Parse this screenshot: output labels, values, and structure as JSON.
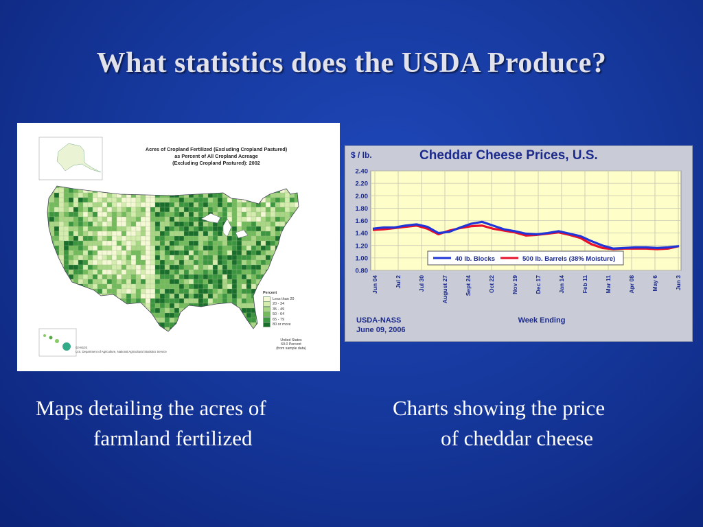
{
  "slide": {
    "title": "What statistics does the USDA Produce?"
  },
  "map": {
    "title": "Acres of Cropland Fertilized (Excluding Cropland Pastured)\nas Percent of All Cropland Acreage\n(Excluding Cropland Pastured):  2002",
    "legend": {
      "title": "Percent",
      "items": [
        {
          "label": "Less than 20",
          "color": "#f4f8d4"
        },
        {
          "label": "20 - 34",
          "color": "#d4ecae"
        },
        {
          "label": "35 - 49",
          "color": "#a8d684"
        },
        {
          "label": "50 - 64",
          "color": "#72ba5c"
        },
        {
          "label": "65 - 79",
          "color": "#3c9640"
        },
        {
          "label": "80 or more",
          "color": "#1a6e2c"
        }
      ]
    },
    "note": "United States\n60.0 Percent\n(from sample data)",
    "source": "02-M103\nU.S. Department of Agriculture, National Agricultural Statistics Service"
  },
  "chart_data": {
    "type": "line",
    "title": "Cheddar Cheese Prices, U.S.",
    "ylabel": "$ / lb.",
    "xlabel": "Week Ending",
    "ylim": [
      0.8,
      2.4
    ],
    "y_ticks": [
      "2.40",
      "2.20",
      "2.00",
      "1.80",
      "1.60",
      "1.40",
      "1.20",
      "1.00",
      "0.80"
    ],
    "x_ticks": [
      "Jun 04",
      "Jul 2",
      "Jul 30",
      "August 27",
      "Sept 24",
      "Oct 22",
      "Nov 19",
      "Dec 17",
      "Jan 14",
      "Feb 11",
      "Mar 11",
      "Apr 08",
      "May 6",
      "Jun 3"
    ],
    "grid": true,
    "legend_position": "bottom-center",
    "source": "USDA-NASS",
    "date": "June 09, 2006",
    "series": [
      {
        "name": "40 lb. Blocks",
        "color": "#1f35d8",
        "values": [
          1.47,
          1.49,
          1.49,
          1.52,
          1.54,
          1.5,
          1.4,
          1.42,
          1.49,
          1.55,
          1.58,
          1.52,
          1.46,
          1.43,
          1.39,
          1.38,
          1.4,
          1.43,
          1.39,
          1.35,
          1.27,
          1.2,
          1.15,
          1.16,
          1.17,
          1.17,
          1.16,
          1.17,
          1.19
        ]
      },
      {
        "name": "500 lb. Barrels (38% Moisture)",
        "color": "#e8102a",
        "values": [
          1.45,
          1.46,
          1.48,
          1.5,
          1.52,
          1.47,
          1.38,
          1.44,
          1.48,
          1.51,
          1.52,
          1.47,
          1.44,
          1.41,
          1.36,
          1.37,
          1.39,
          1.41,
          1.37,
          1.32,
          1.22,
          1.16,
          1.14,
          1.15,
          1.15,
          1.15,
          1.14,
          1.15,
          1.19
        ]
      }
    ]
  },
  "captions": {
    "left_line1": "Maps detailing the acres of",
    "left_line2": "farmland fertilized",
    "right_line1": "Charts showing the price",
    "right_line2": "of  cheddar cheese"
  }
}
